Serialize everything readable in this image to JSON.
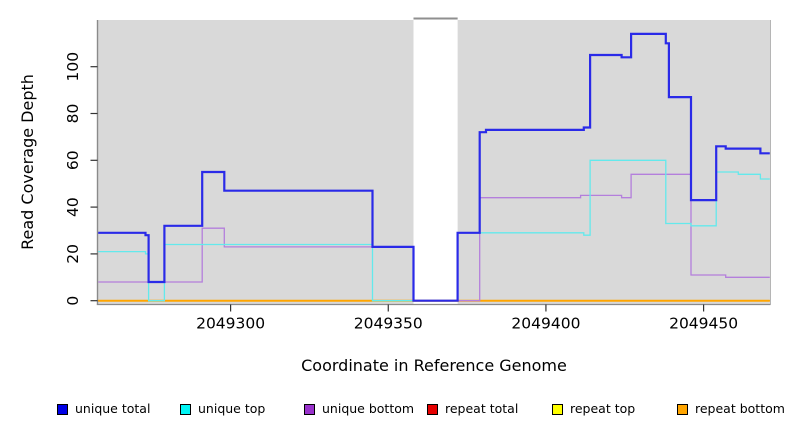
{
  "chart_data": {
    "type": "line",
    "title": "",
    "xlabel": "Coordinate in Reference Genome",
    "ylabel": "Read Coverage Depth",
    "x_ticks": [
      2049300,
      2049350,
      2049400,
      2049450
    ],
    "y_ticks": [
      0,
      20,
      40,
      60,
      80,
      100
    ],
    "xlim": [
      2049258,
      2049471
    ],
    "ylim": [
      0,
      121
    ],
    "grid": false,
    "plot_background": "#d9d9d9",
    "gap_region": {
      "start": 2049358,
      "end": 2049372
    },
    "series": [
      {
        "name": "repeat total",
        "color": "#dd0000",
        "width": 1.2,
        "points": [
          [
            2049258,
            0
          ]
        ]
      },
      {
        "name": "repeat top",
        "color": "#f2f200",
        "width": 1.2,
        "points": [
          [
            2049258,
            0
          ]
        ]
      },
      {
        "name": "repeat bottom",
        "color": "#ffa500",
        "width": 2.0,
        "points": [
          [
            2049258,
            0
          ]
        ]
      },
      {
        "name": "unique bottom",
        "color": "#b47fdc",
        "width": 1.3,
        "points": [
          [
            2049258,
            8
          ],
          [
            2049291,
            31
          ],
          [
            2049298,
            23
          ],
          [
            2049358,
            0
          ],
          [
            2049379,
            44
          ],
          [
            2049411,
            45
          ],
          [
            2049424,
            44
          ],
          [
            2049427,
            54
          ],
          [
            2049446,
            11
          ],
          [
            2049457,
            10
          ]
        ]
      },
      {
        "name": "unique top",
        "color": "#63e9ec",
        "width": 1.3,
        "points": [
          [
            2049258,
            21
          ],
          [
            2049273,
            20
          ],
          [
            2049274,
            0
          ],
          [
            2049279,
            24
          ],
          [
            2049345,
            0
          ],
          [
            2049372,
            29
          ],
          [
            2049412,
            28
          ],
          [
            2049414,
            60
          ],
          [
            2049438,
            33
          ],
          [
            2049446,
            32
          ],
          [
            2049454,
            55
          ],
          [
            2049461,
            54
          ],
          [
            2049468,
            52
          ]
        ]
      },
      {
        "name": "unique total",
        "color": "#2a2ae8",
        "width": 2.2,
        "points": [
          [
            2049258,
            29
          ],
          [
            2049273,
            28
          ],
          [
            2049274,
            8
          ],
          [
            2049279,
            32
          ],
          [
            2049291,
            55
          ],
          [
            2049298,
            47
          ],
          [
            2049345,
            23
          ],
          [
            2049358,
            0
          ],
          [
            2049372,
            29
          ],
          [
            2049379,
            72
          ],
          [
            2049381,
            73
          ],
          [
            2049412,
            74
          ],
          [
            2049414,
            105
          ],
          [
            2049424,
            104
          ],
          [
            2049427,
            114
          ],
          [
            2049438,
            110
          ],
          [
            2049439,
            87
          ],
          [
            2049446,
            43
          ],
          [
            2049454,
            66
          ],
          [
            2049457,
            65
          ],
          [
            2049468,
            63
          ]
        ]
      }
    ]
  },
  "legend": {
    "items": [
      {
        "label": "unique total",
        "color": "#0000e6"
      },
      {
        "label": "unique top",
        "color": "#00f5f5"
      },
      {
        "label": "unique bottom",
        "color": "#9932cc"
      },
      {
        "label": "repeat total",
        "color": "#e60000"
      },
      {
        "label": "repeat top",
        "color": "#ffff00"
      },
      {
        "label": "repeat bottom",
        "color": "#ffa500"
      }
    ]
  }
}
